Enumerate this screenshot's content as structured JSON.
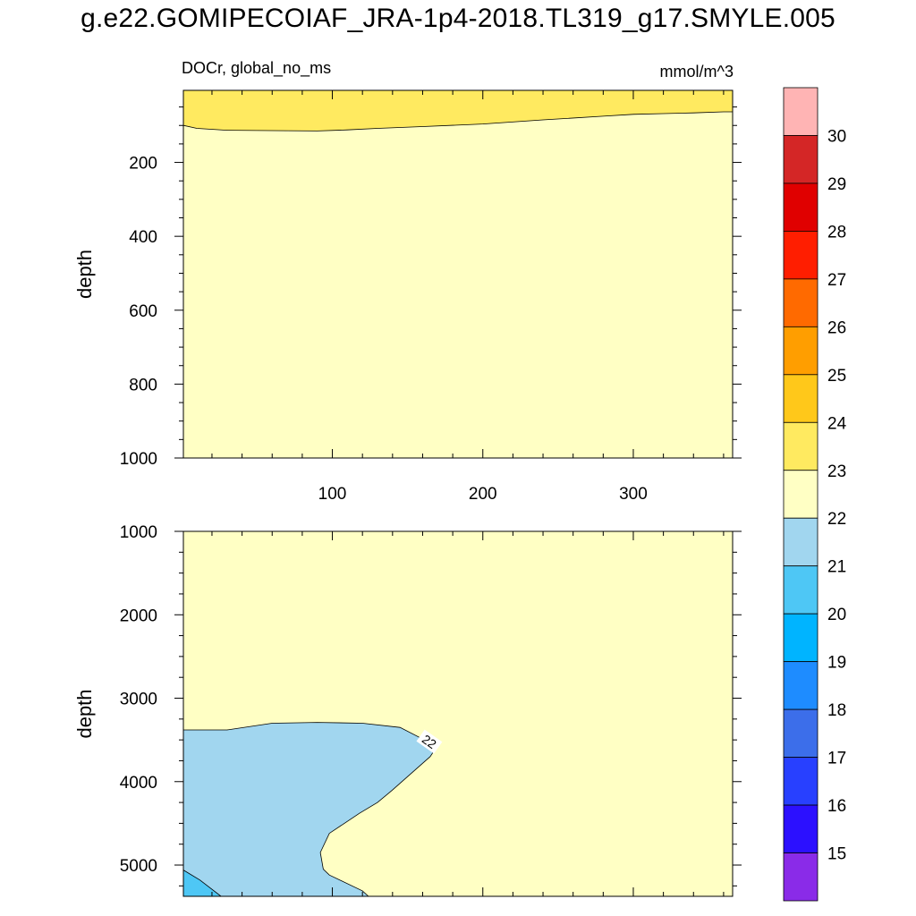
{
  "title": "g.e22.GOMIPECOIAF_JRA-1p4-2018.TL319_g17.SMYLE.005",
  "chart_data": [
    {
      "type": "contour",
      "panel": "upper",
      "left_label": "DOCr, global_no_ms",
      "right_label": "mmol/m^3",
      "ylabel": "depth",
      "xlabel": "",
      "xlim": [
        1,
        366
      ],
      "ylim": [
        1000,
        5
      ],
      "x_ticks": [
        100,
        200,
        300
      ],
      "y_ticks": [
        200,
        400,
        600,
        800,
        1000
      ],
      "regions": [
        {
          "name": "22-23",
          "fill": "#ffffc4"
        },
        {
          "name": "23-24",
          "fill": "#ffea60",
          "boundary_x": [
            1,
            10,
            30,
            60,
            90,
            110,
            130,
            160,
            200,
            240,
            280,
            300,
            320,
            340,
            360,
            366
          ],
          "boundary_depth": [
            100,
            108,
            113,
            114,
            115,
            112,
            108,
            103,
            96,
            85,
            75,
            70,
            68,
            66,
            63,
            63
          ]
        }
      ]
    },
    {
      "type": "contour",
      "panel": "lower",
      "ylabel": "depth",
      "xlim": [
        1,
        366
      ],
      "ylim": [
        1000,
        5375
      ],
      "y_ticks": [
        1000,
        2000,
        3000,
        4000,
        5000
      ],
      "contour_label": "22",
      "regions": [
        {
          "name": "22-23",
          "fill": "#ffffc4"
        },
        {
          "name": "21-22",
          "fill": "#a1d6ef",
          "boundary_x": [
            1,
            30,
            60,
            90,
            120,
            145,
            160,
            168,
            165,
            155,
            140,
            130,
            118,
            108,
            98,
            92,
            94,
            98,
            120,
            124
          ],
          "boundary_depth": [
            3380,
            3380,
            3300,
            3290,
            3300,
            3350,
            3490,
            3620,
            3700,
            3860,
            4100,
            4250,
            4380,
            4500,
            4620,
            4850,
            5050,
            5120,
            5310,
            5375
          ]
        },
        {
          "name": "20-21",
          "fill": "#4ec7f5",
          "boundary_x": [
            1,
            12,
            26
          ],
          "boundary_depth": [
            5060,
            5180,
            5375
          ]
        }
      ]
    }
  ],
  "colorbar": {
    "levels": [
      "30",
      "29",
      "28",
      "27",
      "26",
      "25",
      "24",
      "23",
      "22",
      "21",
      "20",
      "19",
      "18",
      "17",
      "16",
      "15"
    ],
    "colors": [
      "#ffb4b4",
      "#d42626",
      "#e00000",
      "#ff1e00",
      "#ff6a00",
      "#ff9e00",
      "#ffc81a",
      "#ffea60",
      "#ffffc4",
      "#a1d6ef",
      "#4ec7f5",
      "#00b4ff",
      "#1e8cff",
      "#3c6eea",
      "#2840ff",
      "#2c10ff",
      "#8a2be8"
    ]
  }
}
